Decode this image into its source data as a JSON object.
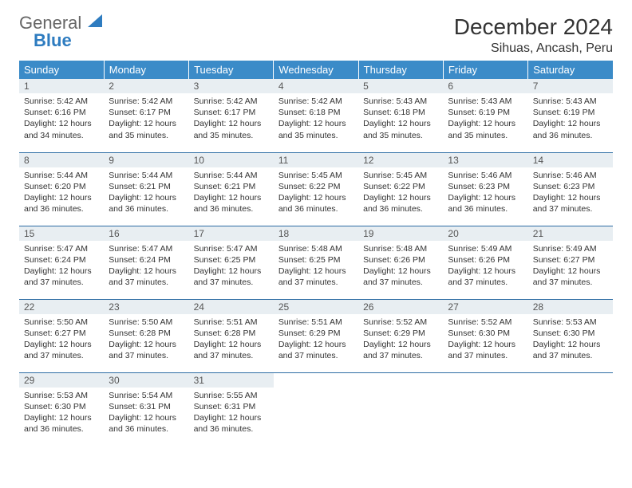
{
  "logo": {
    "line1": "General",
    "line2": "Blue"
  },
  "title": "December 2024",
  "location": "Sihuas, Ancash, Peru",
  "colors": {
    "header_bg": "#3b8bc8",
    "header_text": "#ffffff",
    "daynum_bg": "#e8eef2",
    "row_border": "#2e6da4",
    "logo_blue": "#2e7cc0"
  },
  "weekdays": [
    "Sunday",
    "Monday",
    "Tuesday",
    "Wednesday",
    "Thursday",
    "Friday",
    "Saturday"
  ],
  "labels": {
    "sunrise": "Sunrise:",
    "sunset": "Sunset:",
    "daylight": "Daylight:"
  },
  "weeks": [
    [
      {
        "n": "1",
        "sunrise": "5:42 AM",
        "sunset": "6:16 PM",
        "daylight": "12 hours and 34 minutes."
      },
      {
        "n": "2",
        "sunrise": "5:42 AM",
        "sunset": "6:17 PM",
        "daylight": "12 hours and 35 minutes."
      },
      {
        "n": "3",
        "sunrise": "5:42 AM",
        "sunset": "6:17 PM",
        "daylight": "12 hours and 35 minutes."
      },
      {
        "n": "4",
        "sunrise": "5:42 AM",
        "sunset": "6:18 PM",
        "daylight": "12 hours and 35 minutes."
      },
      {
        "n": "5",
        "sunrise": "5:43 AM",
        "sunset": "6:18 PM",
        "daylight": "12 hours and 35 minutes."
      },
      {
        "n": "6",
        "sunrise": "5:43 AM",
        "sunset": "6:19 PM",
        "daylight": "12 hours and 35 minutes."
      },
      {
        "n": "7",
        "sunrise": "5:43 AM",
        "sunset": "6:19 PM",
        "daylight": "12 hours and 36 minutes."
      }
    ],
    [
      {
        "n": "8",
        "sunrise": "5:44 AM",
        "sunset": "6:20 PM",
        "daylight": "12 hours and 36 minutes."
      },
      {
        "n": "9",
        "sunrise": "5:44 AM",
        "sunset": "6:21 PM",
        "daylight": "12 hours and 36 minutes."
      },
      {
        "n": "10",
        "sunrise": "5:44 AM",
        "sunset": "6:21 PM",
        "daylight": "12 hours and 36 minutes."
      },
      {
        "n": "11",
        "sunrise": "5:45 AM",
        "sunset": "6:22 PM",
        "daylight": "12 hours and 36 minutes."
      },
      {
        "n": "12",
        "sunrise": "5:45 AM",
        "sunset": "6:22 PM",
        "daylight": "12 hours and 36 minutes."
      },
      {
        "n": "13",
        "sunrise": "5:46 AM",
        "sunset": "6:23 PM",
        "daylight": "12 hours and 36 minutes."
      },
      {
        "n": "14",
        "sunrise": "5:46 AM",
        "sunset": "6:23 PM",
        "daylight": "12 hours and 37 minutes."
      }
    ],
    [
      {
        "n": "15",
        "sunrise": "5:47 AM",
        "sunset": "6:24 PM",
        "daylight": "12 hours and 37 minutes."
      },
      {
        "n": "16",
        "sunrise": "5:47 AM",
        "sunset": "6:24 PM",
        "daylight": "12 hours and 37 minutes."
      },
      {
        "n": "17",
        "sunrise": "5:47 AM",
        "sunset": "6:25 PM",
        "daylight": "12 hours and 37 minutes."
      },
      {
        "n": "18",
        "sunrise": "5:48 AM",
        "sunset": "6:25 PM",
        "daylight": "12 hours and 37 minutes."
      },
      {
        "n": "19",
        "sunrise": "5:48 AM",
        "sunset": "6:26 PM",
        "daylight": "12 hours and 37 minutes."
      },
      {
        "n": "20",
        "sunrise": "5:49 AM",
        "sunset": "6:26 PM",
        "daylight": "12 hours and 37 minutes."
      },
      {
        "n": "21",
        "sunrise": "5:49 AM",
        "sunset": "6:27 PM",
        "daylight": "12 hours and 37 minutes."
      }
    ],
    [
      {
        "n": "22",
        "sunrise": "5:50 AM",
        "sunset": "6:27 PM",
        "daylight": "12 hours and 37 minutes."
      },
      {
        "n": "23",
        "sunrise": "5:50 AM",
        "sunset": "6:28 PM",
        "daylight": "12 hours and 37 minutes."
      },
      {
        "n": "24",
        "sunrise": "5:51 AM",
        "sunset": "6:28 PM",
        "daylight": "12 hours and 37 minutes."
      },
      {
        "n": "25",
        "sunrise": "5:51 AM",
        "sunset": "6:29 PM",
        "daylight": "12 hours and 37 minutes."
      },
      {
        "n": "26",
        "sunrise": "5:52 AM",
        "sunset": "6:29 PM",
        "daylight": "12 hours and 37 minutes."
      },
      {
        "n": "27",
        "sunrise": "5:52 AM",
        "sunset": "6:30 PM",
        "daylight": "12 hours and 37 minutes."
      },
      {
        "n": "28",
        "sunrise": "5:53 AM",
        "sunset": "6:30 PM",
        "daylight": "12 hours and 37 minutes."
      }
    ],
    [
      {
        "n": "29",
        "sunrise": "5:53 AM",
        "sunset": "6:30 PM",
        "daylight": "12 hours and 36 minutes."
      },
      {
        "n": "30",
        "sunrise": "5:54 AM",
        "sunset": "6:31 PM",
        "daylight": "12 hours and 36 minutes."
      },
      {
        "n": "31",
        "sunrise": "5:55 AM",
        "sunset": "6:31 PM",
        "daylight": "12 hours and 36 minutes."
      },
      null,
      null,
      null,
      null
    ]
  ]
}
